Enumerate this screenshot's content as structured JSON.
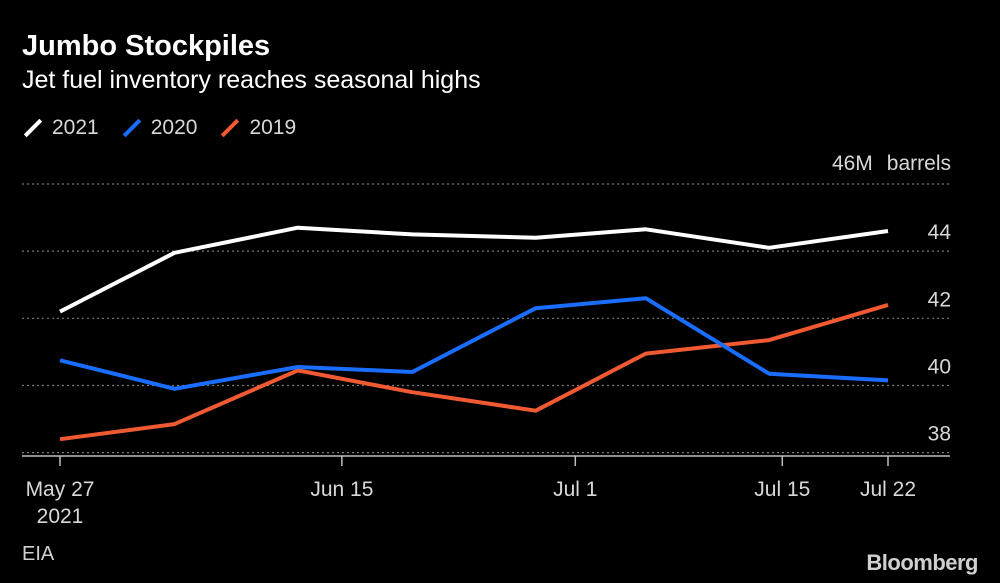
{
  "header": {
    "title": "Jumbo Stockpiles",
    "subtitle": "Jet fuel inventory reaches seasonal highs"
  },
  "footer": {
    "source": "EIA",
    "brand": "Bloomberg"
  },
  "chart_data": {
    "type": "line",
    "title": "Jumbo Stockpiles",
    "subtitle": "Jet fuel inventory reaches seasonal highs",
    "ylabel": "barrels",
    "y_top_label": "46M",
    "ylim": [
      37.9,
      46
    ],
    "yticks": [
      38,
      40,
      42,
      44
    ],
    "x_dates": [
      "2021-05-27",
      "2021-06-03",
      "2021-06-10",
      "2021-06-17",
      "2021-06-24",
      "2021-07-01",
      "2021-07-08",
      "2021-07-15",
      "2021-07-22"
    ],
    "x_index": [
      0,
      1,
      2,
      3,
      4,
      5,
      6,
      7,
      8
    ],
    "xticks": [
      {
        "pos": 0,
        "label": "May 27",
        "label2": "2021"
      },
      {
        "pos": 3.0476,
        "label": "Jun 15",
        "label2": ""
      },
      {
        "pos": 5.5714,
        "label": "Jul 1",
        "label2": ""
      },
      {
        "pos": 7.8095,
        "label": "Jul 15",
        "label2": ""
      },
      {
        "pos": 8.9524,
        "label": "Jul 22",
        "label2": ""
      }
    ],
    "x_max": 8.9524,
    "legend_position": "top-left",
    "series": [
      {
        "name": "2021",
        "color": "#ffffff",
        "x": [
          0,
          1.2381,
          2.5714,
          3.8095,
          5.1429,
          6.3333,
          7.6667,
          8.9524
        ],
        "values": [
          42.2,
          43.95,
          44.7,
          44.5,
          44.4,
          44.65,
          44.1,
          44.6
        ]
      },
      {
        "name": "2020",
        "color": "#1a6eff",
        "x": [
          0,
          1.2381,
          2.5714,
          3.8095,
          5.1429,
          6.3333,
          7.6667,
          8.9524
        ],
        "values": [
          40.75,
          39.9,
          40.55,
          40.4,
          42.3,
          42.6,
          40.35,
          40.15
        ]
      },
      {
        "name": "2019",
        "color": "#f05a32",
        "x": [
          0,
          1.2381,
          2.5714,
          3.8095,
          5.1429,
          6.3333,
          7.6667,
          8.9524
        ],
        "values": [
          38.4,
          38.85,
          40.45,
          39.8,
          39.25,
          40.95,
          41.35,
          42.4
        ]
      }
    ]
  }
}
